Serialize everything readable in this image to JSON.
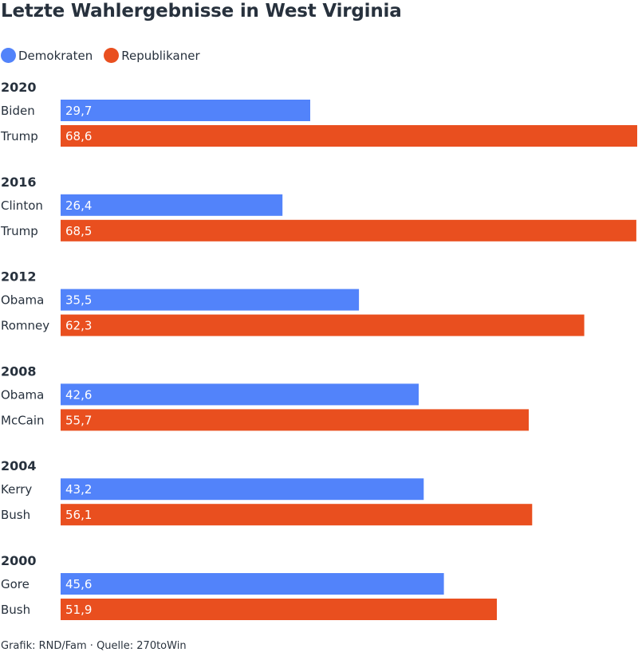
{
  "colors": {
    "democrat": "#5283fa",
    "republican": "#e94f1f"
  },
  "legend": [
    {
      "label": "Demokraten",
      "color": "#5283fa"
    },
    {
      "label": "Republikaner",
      "color": "#e94f1f"
    }
  ],
  "chart_data": {
    "type": "bar",
    "orientation": "horizontal",
    "title": "Letzte Wahlergebnisse in West Virginia",
    "xlim": [
      0,
      68.6
    ],
    "grid": false,
    "legend_position": "top-left",
    "groups": [
      {
        "year": "2020",
        "bars": [
          {
            "candidate": "Biden",
            "party": "democrat",
            "value": 29.7,
            "label": "29,7"
          },
          {
            "candidate": "Trump",
            "party": "republican",
            "value": 68.6,
            "label": "68,6"
          }
        ]
      },
      {
        "year": "2016",
        "bars": [
          {
            "candidate": "Clinton",
            "party": "democrat",
            "value": 26.4,
            "label": "26,4"
          },
          {
            "candidate": "Trump",
            "party": "republican",
            "value": 68.5,
            "label": "68,5"
          }
        ]
      },
      {
        "year": "2012",
        "bars": [
          {
            "candidate": "Obama",
            "party": "democrat",
            "value": 35.5,
            "label": "35,5"
          },
          {
            "candidate": "Romney",
            "party": "republican",
            "value": 62.3,
            "label": "62,3"
          }
        ]
      },
      {
        "year": "2008",
        "bars": [
          {
            "candidate": "Obama",
            "party": "democrat",
            "value": 42.6,
            "label": "42,6"
          },
          {
            "candidate": "McCain",
            "party": "republican",
            "value": 55.7,
            "label": "55,7"
          }
        ]
      },
      {
        "year": "2004",
        "bars": [
          {
            "candidate": "Kerry",
            "party": "democrat",
            "value": 43.2,
            "label": "43,2"
          },
          {
            "candidate": "Bush",
            "party": "republican",
            "value": 56.1,
            "label": "56,1"
          }
        ]
      },
      {
        "year": "2000",
        "bars": [
          {
            "candidate": "Gore",
            "party": "democrat",
            "value": 45.6,
            "label": "45,6"
          },
          {
            "candidate": "Bush",
            "party": "republican",
            "value": 51.9,
            "label": "51,9"
          }
        ]
      }
    ]
  },
  "source": "Grafik: RND/Fam · Quelle: 270toWin"
}
